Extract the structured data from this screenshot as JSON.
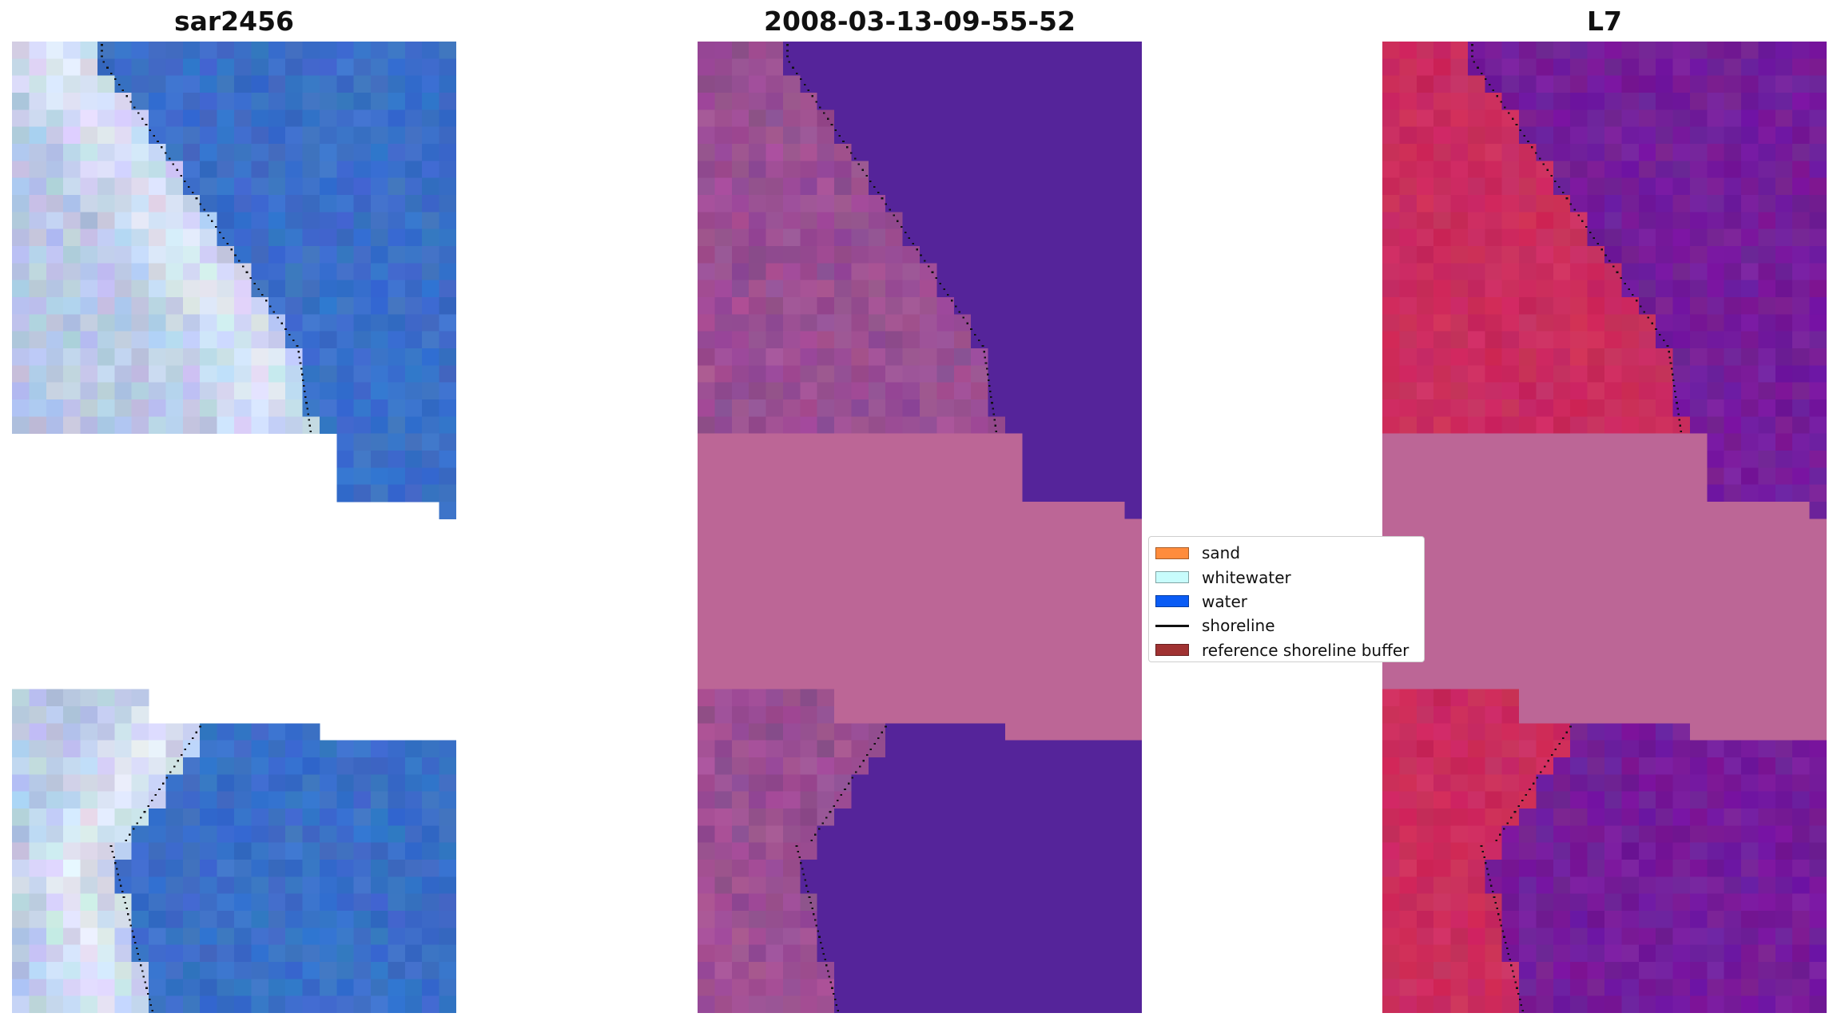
{
  "titles": {
    "left": "sar2456",
    "center": "2008-03-13-09-55-52",
    "right": "L7"
  },
  "legend": {
    "items": [
      {
        "label": "sand",
        "color": "#ff8c3c",
        "kind": "patch"
      },
      {
        "label": "whitewater",
        "color": "#c8fcfc",
        "kind": "patch"
      },
      {
        "label": "water",
        "color": "#0a5cf5",
        "kind": "patch"
      },
      {
        "label": "shoreline",
        "color": "#111111",
        "kind": "line"
      },
      {
        "label": "reference shoreline buffer",
        "color": "#a03232",
        "kind": "patch"
      }
    ]
  },
  "colors": {
    "rgb_land": "#b4c4e4",
    "rgb_water": "#3a6fc8",
    "class_land": "#8e4a8e",
    "class_water": "#55249a",
    "class_nodata": "#bc6696",
    "mndwi_land": "#c9285a",
    "mndwi_water": "#741d9a",
    "mndwi_nodata": "#bc6696",
    "shoreline_dots": "#111111"
  }
}
